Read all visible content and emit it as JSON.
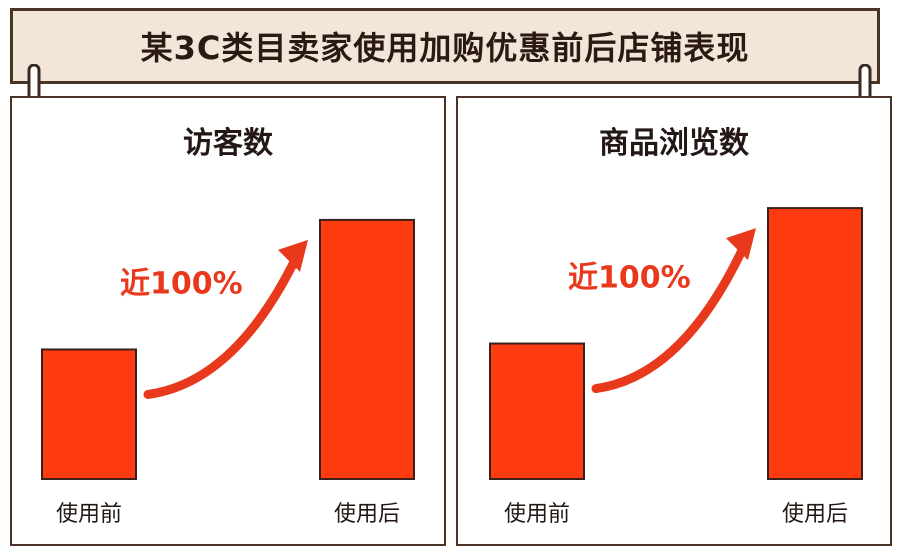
{
  "header": {
    "title": "某3C类目卖家使用加购优惠前后店铺表现"
  },
  "colors": {
    "bar": "#ff3b12",
    "bar_border": "#3a221a",
    "arrow": "#e8391d",
    "banner_bg": "#f2e6d8",
    "frame": "#4a3427"
  },
  "chart_data": [
    {
      "type": "bar",
      "title": "访客数",
      "categories": [
        "使用前",
        "使用后"
      ],
      "values": [
        1,
        2
      ],
      "annotation": "近100%",
      "ylim": [
        0,
        2.2
      ],
      "axes_visible": false
    },
    {
      "type": "bar",
      "title": "商品浏览数",
      "categories": [
        "使用前",
        "使用后"
      ],
      "values": [
        1,
        2
      ],
      "annotation": "近100%",
      "ylim": [
        0,
        2.2
      ],
      "axes_visible": false
    }
  ]
}
